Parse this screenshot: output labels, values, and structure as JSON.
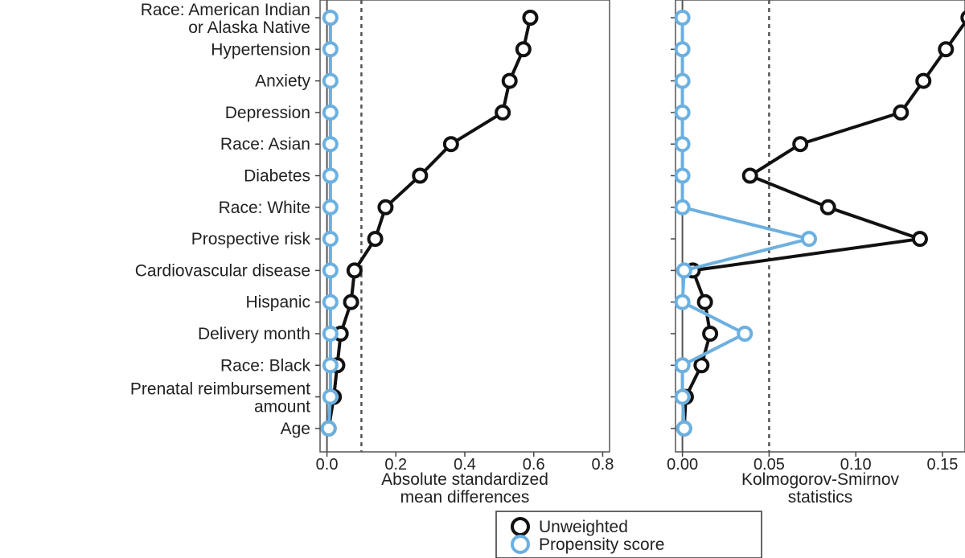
{
  "chart_data": [
    {
      "type": "line",
      "xlabel": "Absolute standardized\nmean differences",
      "xlim": [
        -0.02,
        0.82
      ],
      "x_ticks": [
        0.0,
        0.2,
        0.4,
        0.6,
        0.8
      ],
      "x_tick_labels": [
        "0.0",
        "0.2",
        "0.4",
        "0.6",
        "0.8"
      ],
      "threshold": 0.1,
      "categories": [
        "Race: American Indian\nor Alaska Native",
        "Hypertension",
        "Anxiety",
        "Depression",
        "Race: Asian",
        "Diabetes",
        "Race: White",
        "Prospective risk",
        "Cardiovascular disease",
        "Hispanic",
        "Delivery month",
        "Race: Black",
        "Prenatal reimbursement\namount",
        "Age"
      ],
      "series": [
        {
          "name": "Unweighted",
          "color": "#111111",
          "values": [
            0.59,
            0.57,
            0.53,
            0.51,
            0.36,
            0.27,
            0.17,
            0.14,
            0.08,
            0.07,
            0.04,
            0.03,
            0.02,
            0.005
          ]
        },
        {
          "name": "Propensity score",
          "color": "#6cb0e0",
          "values": [
            0.01,
            0.01,
            0.01,
            0.01,
            0.01,
            0.01,
            0.01,
            0.01,
            0.01,
            0.01,
            0.01,
            0.01,
            0.01,
            0.005
          ]
        }
      ]
    },
    {
      "type": "line",
      "xlabel": "Kolmogorov-Smirnov\nstatistics",
      "xlim": [
        -0.004,
        0.163
      ],
      "x_ticks": [
        0.0,
        0.05,
        0.1,
        0.15
      ],
      "x_tick_labels": [
        "0.00",
        "0.05",
        "0.10",
        "0.15"
      ],
      "threshold": 0.05,
      "categories": [
        "Race: American Indian\nor Alaska Native",
        "Hypertension",
        "Anxiety",
        "Depression",
        "Race: Asian",
        "Diabetes",
        "Race: White",
        "Prospective risk",
        "Cardiovascular disease",
        "Hispanic",
        "Delivery month",
        "Race: Black",
        "Prenatal reimbursement\namount",
        "Age"
      ],
      "series": [
        {
          "name": "Unweighted",
          "color": "#111111",
          "values": [
            0.165,
            0.152,
            0.139,
            0.126,
            0.068,
            0.039,
            0.084,
            0.137,
            0.006,
            0.013,
            0.016,
            0.011,
            0.002,
            0.001
          ]
        },
        {
          "name": "Propensity score",
          "color": "#6cb0e0",
          "values": [
            0.0,
            0.0,
            0.0,
            0.0,
            0.0,
            0.0,
            0.0,
            0.073,
            0.001,
            0.0,
            0.036,
            0.0,
            0.0,
            0.001
          ]
        }
      ]
    }
  ],
  "legend": {
    "items": [
      {
        "label": "Unweighted",
        "color": "#111111"
      },
      {
        "label": "Propensity score",
        "color": "#6cb0e0"
      }
    ],
    "placement": "bottom-center"
  }
}
